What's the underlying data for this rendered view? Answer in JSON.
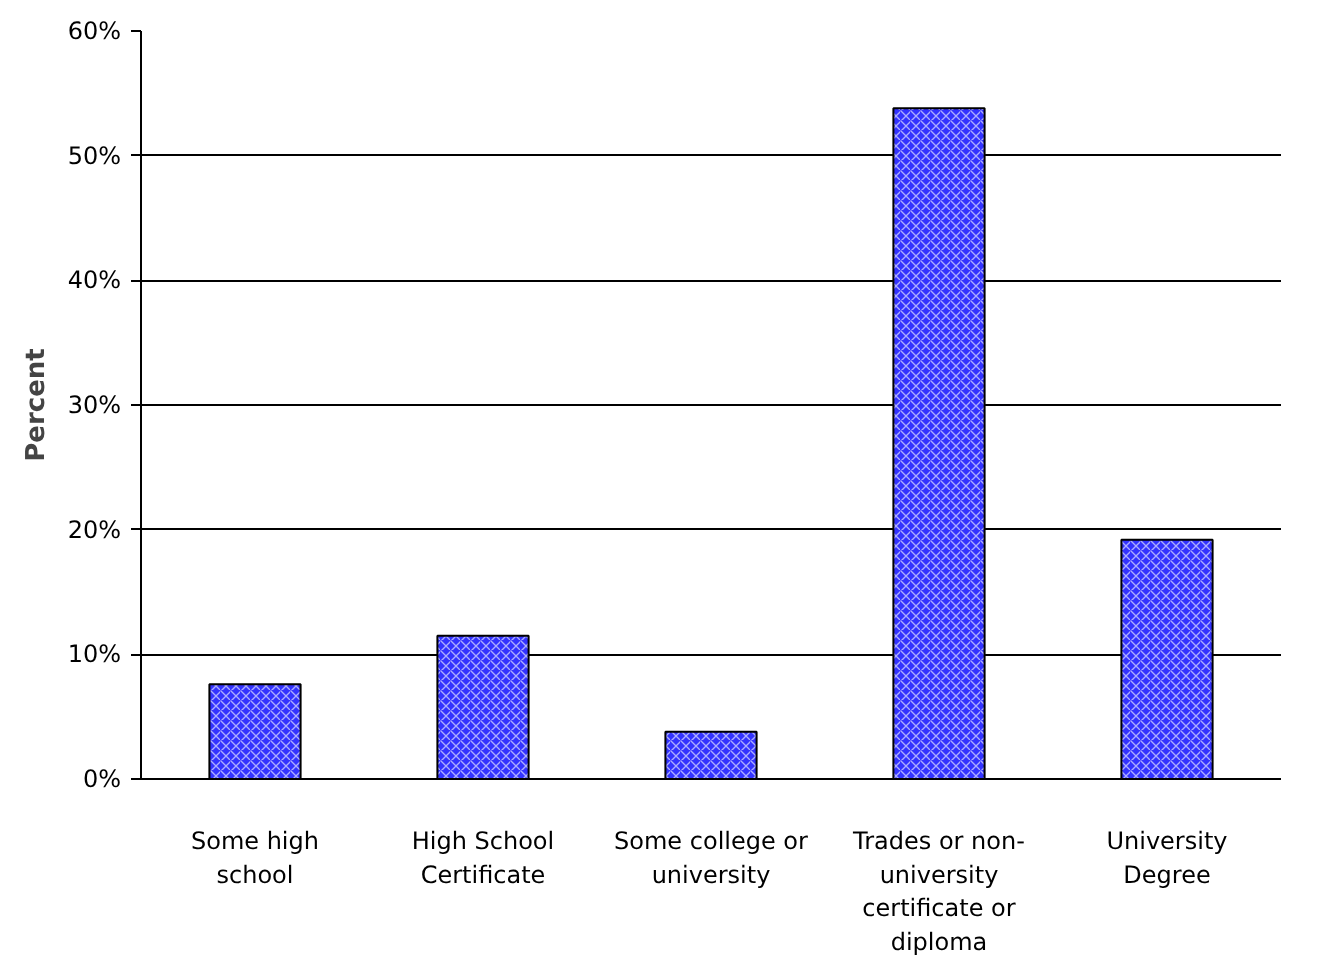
{
  "chart_data": {
    "type": "bar",
    "ylabel": "Percent",
    "categories": [
      "Some high school",
      "High School Certificate",
      "Some college or university",
      "Trades or non-university certificate or diploma",
      "University Degree"
    ],
    "values": [
      7.6,
      11.5,
      3.8,
      53.8,
      19.2
    ],
    "color": "#3333ff",
    "ylim": [
      0,
      60
    ],
    "yticks": [
      {
        "value": 0,
        "label": "0%"
      },
      {
        "value": 10,
        "label": "10%"
      },
      {
        "value": 20,
        "label": "20%"
      },
      {
        "value": 30,
        "label": "30%"
      },
      {
        "value": 40,
        "label": "40%"
      },
      {
        "value": 50,
        "label": "50%"
      },
      {
        "value": 60,
        "label": "60%"
      }
    ],
    "grid": "y"
  }
}
